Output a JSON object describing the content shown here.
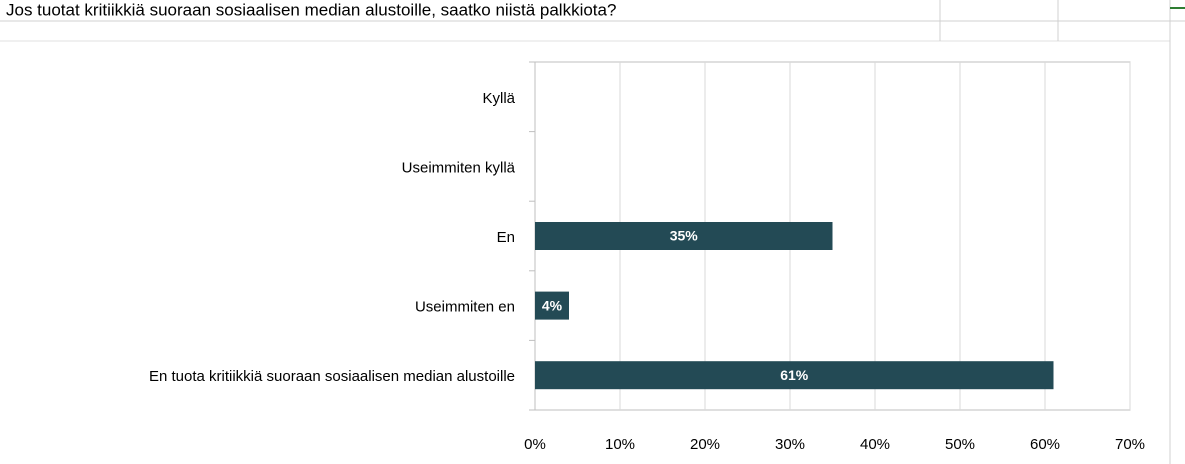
{
  "chart_data": {
    "type": "bar",
    "orientation": "horizontal",
    "title": "Jos tuotat kritiikkiä suoraan sosiaalisen median alustoille, saatko niistä palkkiota?",
    "categories": [
      "Kyllä",
      "Useimmiten kyllä",
      "En",
      "Useimmiten en",
      "En tuota kritiikkiä suoraan sosiaalisen median alustoille"
    ],
    "values": [
      0,
      0,
      35,
      4,
      61
    ],
    "value_labels": [
      null,
      null,
      "35%",
      "4%",
      "61%"
    ],
    "color": "#234a55",
    "xlim": [
      0,
      70
    ],
    "xticks": [
      {
        "value": 0,
        "label": "0%"
      },
      {
        "value": 10,
        "label": "10%"
      },
      {
        "value": 20,
        "label": "20%"
      },
      {
        "value": 30,
        "label": "30%"
      },
      {
        "value": 40,
        "label": "40%"
      },
      {
        "value": 50,
        "label": "50%"
      },
      {
        "value": 60,
        "label": "60%"
      },
      {
        "value": 70,
        "label": "70%"
      }
    ],
    "grid": true
  }
}
